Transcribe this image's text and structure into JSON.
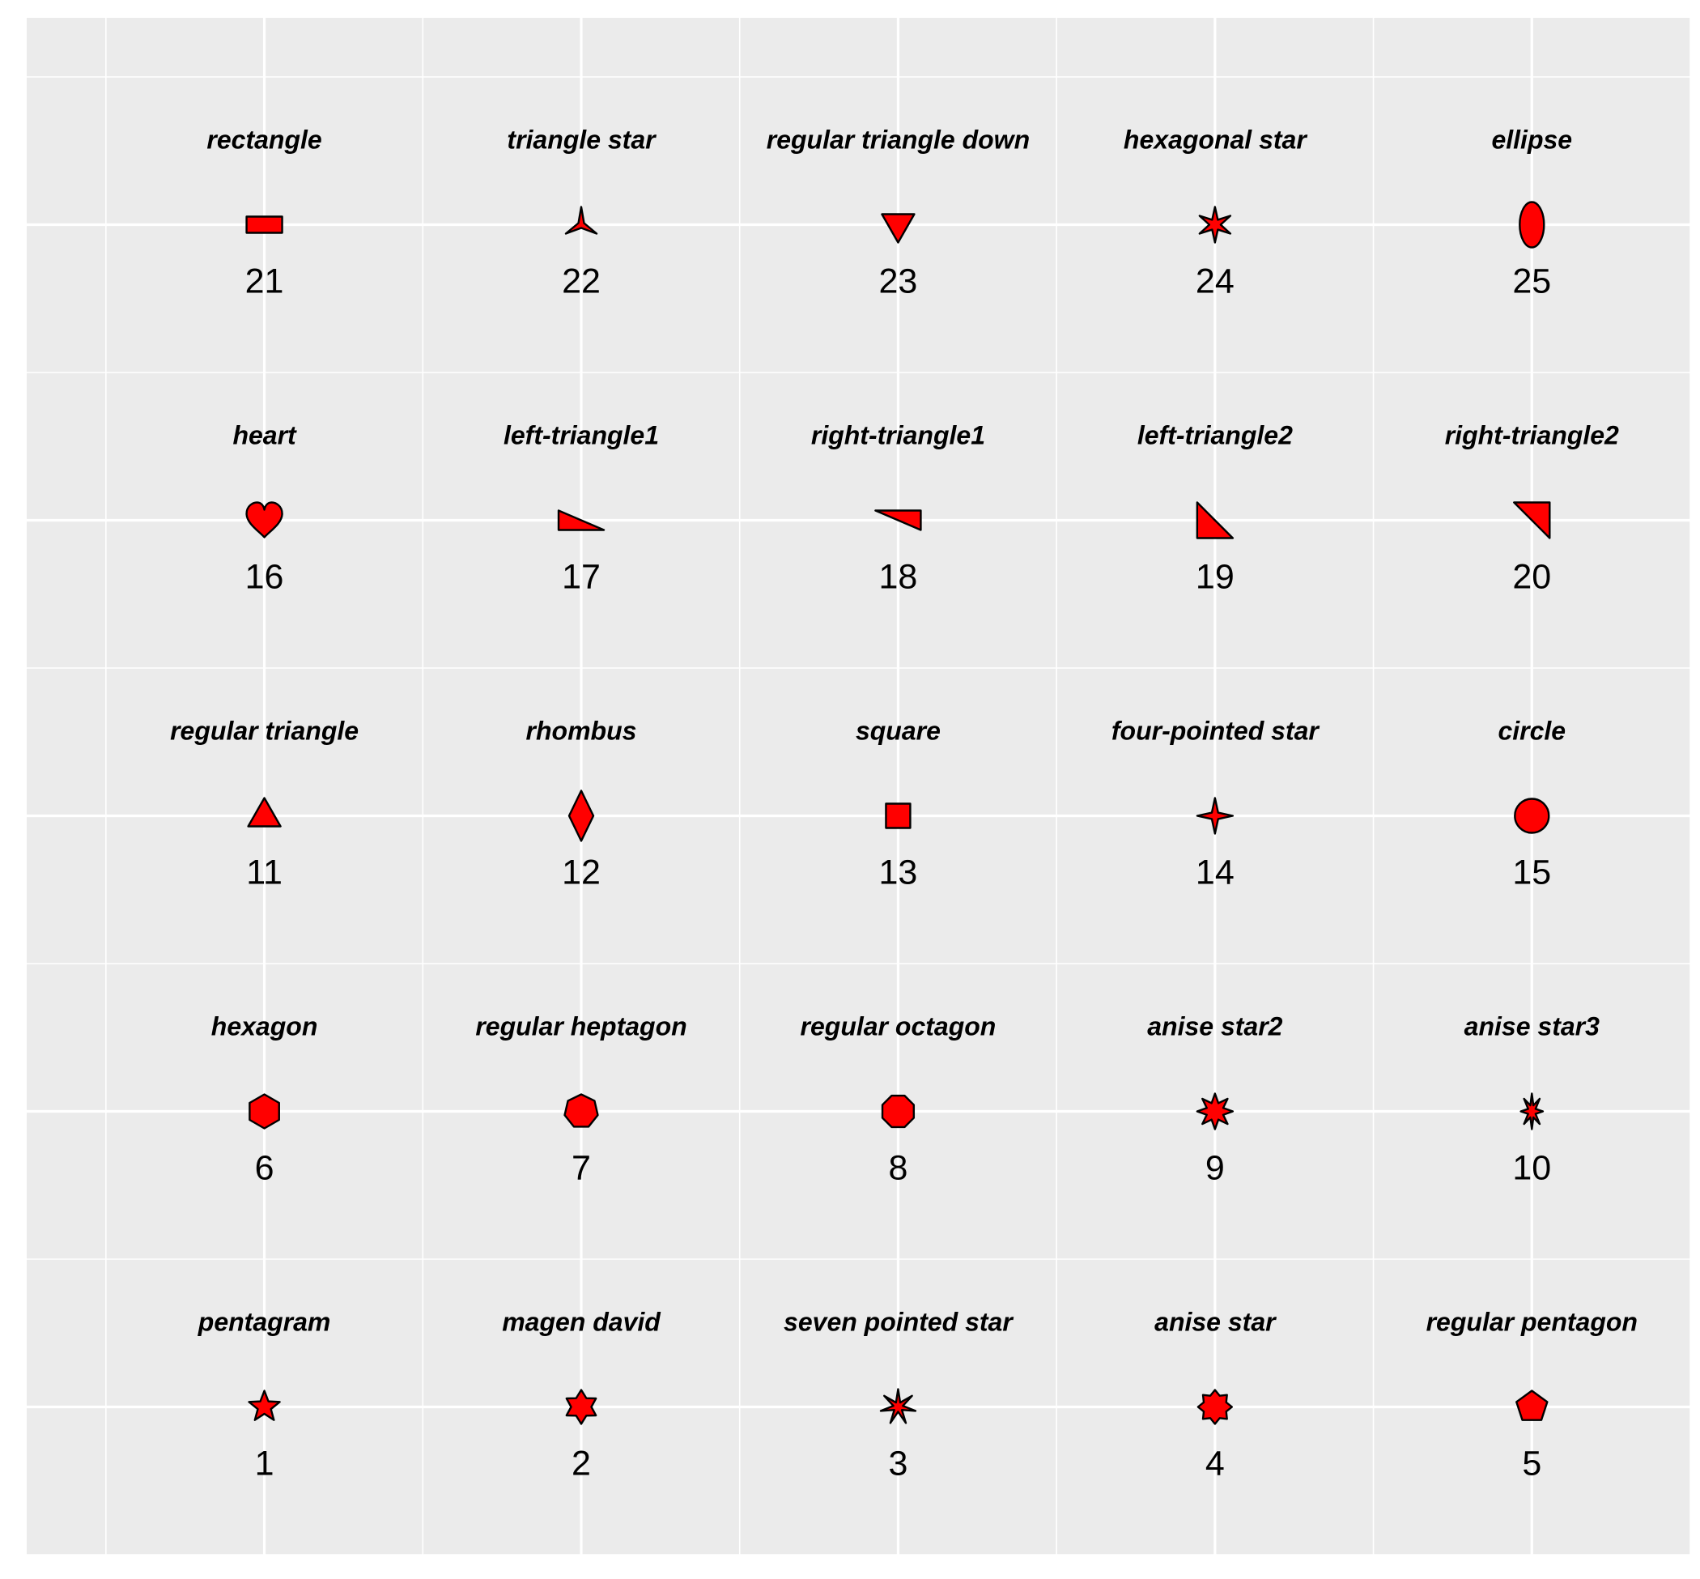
{
  "colors": {
    "panel_background": "#EBEBEB",
    "grid": "#FFFFFF",
    "point_fill": "#FF0000",
    "point_stroke": "#000000"
  },
  "chart_data": {
    "type": "scatter",
    "title": "",
    "xlabel": "",
    "ylabel": "",
    "xlim": [
      0.25,
      5.5
    ],
    "ylim": [
      0.5,
      5.7
    ],
    "grid": true,
    "legend": "none",
    "points": [
      {
        "x": 1,
        "y": 1,
        "id": "1",
        "name": "pentagram",
        "shape": "pentagram"
      },
      {
        "x": 2,
        "y": 1,
        "id": "2",
        "name": "magen david",
        "shape": "magen-david"
      },
      {
        "x": 3,
        "y": 1,
        "id": "3",
        "name": "seven pointed star",
        "shape": "seven-star"
      },
      {
        "x": 4,
        "y": 1,
        "id": "4",
        "name": "anise star",
        "shape": "anise-star"
      },
      {
        "x": 5,
        "y": 1,
        "id": "5",
        "name": "regular pentagon",
        "shape": "pentagon"
      },
      {
        "x": 1,
        "y": 2,
        "id": "6",
        "name": "hexagon",
        "shape": "hexagon"
      },
      {
        "x": 2,
        "y": 2,
        "id": "7",
        "name": "regular heptagon",
        "shape": "heptagon"
      },
      {
        "x": 3,
        "y": 2,
        "id": "8",
        "name": "regular octagon",
        "shape": "octagon"
      },
      {
        "x": 4,
        "y": 2,
        "id": "9",
        "name": "anise star2",
        "shape": "anise-star2"
      },
      {
        "x": 5,
        "y": 2,
        "id": "10",
        "name": "anise star3",
        "shape": "anise-star3"
      },
      {
        "x": 1,
        "y": 3,
        "id": "11",
        "name": "regular triangle",
        "shape": "triangle"
      },
      {
        "x": 2,
        "y": 3,
        "id": "12",
        "name": "rhombus",
        "shape": "rhombus"
      },
      {
        "x": 3,
        "y": 3,
        "id": "13",
        "name": "square",
        "shape": "square"
      },
      {
        "x": 4,
        "y": 3,
        "id": "14",
        "name": "four-pointed star",
        "shape": "four-star"
      },
      {
        "x": 5,
        "y": 3,
        "id": "15",
        "name": "circle",
        "shape": "circle"
      },
      {
        "x": 1,
        "y": 4,
        "id": "16",
        "name": "heart",
        "shape": "heart"
      },
      {
        "x": 2,
        "y": 4,
        "id": "17",
        "name": "left-triangle1",
        "shape": "left-triangle1"
      },
      {
        "x": 3,
        "y": 4,
        "id": "18",
        "name": "right-triangle1",
        "shape": "right-triangle1"
      },
      {
        "x": 4,
        "y": 4,
        "id": "19",
        "name": "left-triangle2",
        "shape": "left-triangle2"
      },
      {
        "x": 5,
        "y": 4,
        "id": "20",
        "name": "right-triangle2",
        "shape": "right-triangle2"
      },
      {
        "x": 1,
        "y": 5,
        "id": "21",
        "name": "rectangle",
        "shape": "rectangle"
      },
      {
        "x": 2,
        "y": 5,
        "id": "22",
        "name": "triangle star",
        "shape": "triangle-star"
      },
      {
        "x": 3,
        "y": 5,
        "id": "23",
        "name": "regular triangle down",
        "shape": "triangle-down"
      },
      {
        "x": 4,
        "y": 5,
        "id": "24",
        "name": "hexagonal star",
        "shape": "hexagonal-star"
      },
      {
        "x": 5,
        "y": 5,
        "id": "25",
        "name": "ellipse",
        "shape": "ellipse"
      }
    ]
  }
}
